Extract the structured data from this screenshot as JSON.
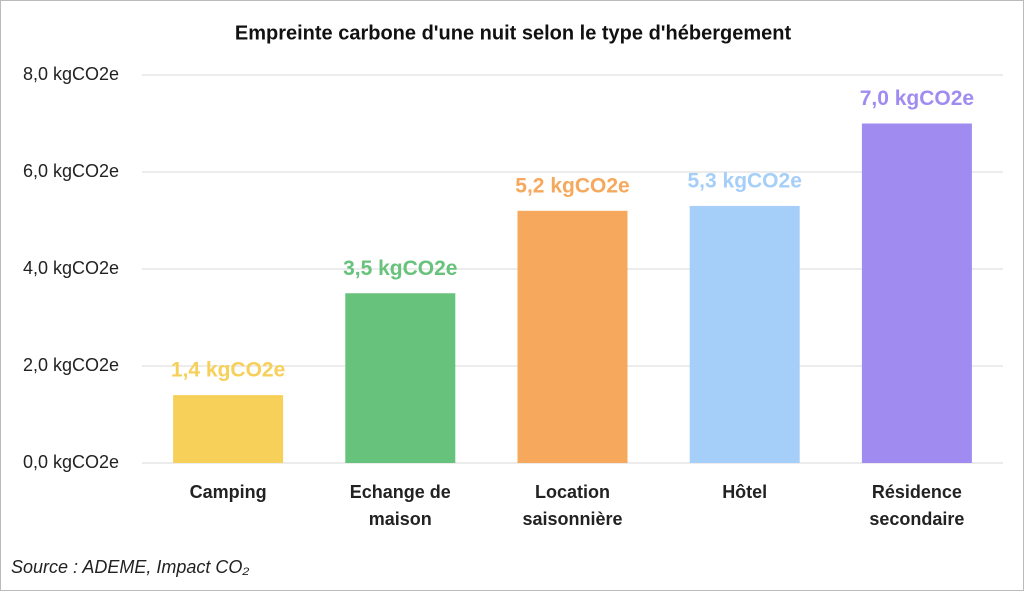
{
  "chart_data": {
    "type": "bar",
    "title": "Empreinte carbone d'une nuit selon le type d'hébergement",
    "categories": [
      "Camping",
      "Echange de maison",
      "Location saisonnière",
      "Hôtel",
      "Résidence secondaire"
    ],
    "values": [
      1.4,
      3.5,
      5.2,
      5.3,
      7.0
    ],
    "value_labels": [
      "1,4 kgCO2e",
      "3,5 kgCO2e",
      "5,2 kgCO2e",
      "5,3 kgCO2e",
      "7,0 kgCO2e"
    ],
    "colors": [
      "#f7d05a",
      "#67c27b",
      "#f6a95c",
      "#a5cff9",
      "#a08cf0"
    ],
    "ylim": [
      0,
      8
    ],
    "yticks": [
      {
        "value": 0,
        "label": "0,0 kgCO2e"
      },
      {
        "value": 2,
        "label": "2,0 kgCO2e"
      },
      {
        "value": 4,
        "label": "4,0 kgCO2e"
      },
      {
        "value": 6,
        "label": "6,0 kgCO2e"
      },
      {
        "value": 8,
        "label": "8,0 kgCO2e"
      }
    ],
    "grid": true,
    "source": "Source : ADEME, Impact CO₂"
  }
}
